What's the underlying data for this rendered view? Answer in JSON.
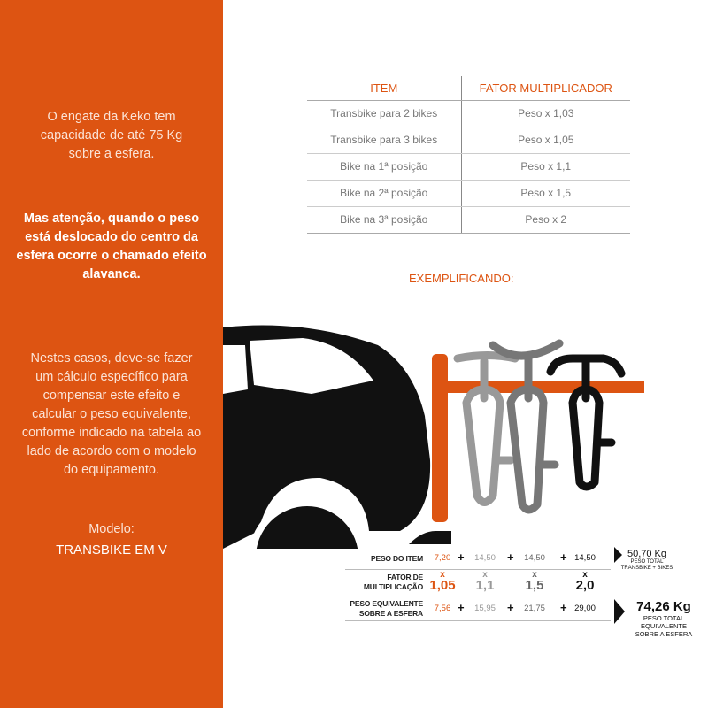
{
  "colors": {
    "accent": "#DD5412",
    "ink": "#111111"
  },
  "left": {
    "p1": [
      "O engate da Keko tem",
      "capacidade de até 75 Kg",
      "sobre a esfera."
    ],
    "p2": [
      "Mas atenção, quando o peso",
      "está deslocado do centro da",
      "esfera ocorre o chamado efeito",
      "alavanca."
    ],
    "p3": [
      "Nestes casos, deve-se fazer",
      "um cálculo específico para",
      "compensar este efeito e",
      "calcular o peso equivalente,",
      "conforme indicado na tabela ao",
      "lado de acordo com o modelo",
      "do equipamento."
    ],
    "model_label": "Modelo:",
    "model_value": "TRANSBIKE EM V"
  },
  "ref_table": {
    "headers": [
      "ITEM",
      "FATOR MULTIPLICADOR"
    ],
    "rows": [
      [
        "Transbike para 2 bikes",
        "Peso x 1,03"
      ],
      [
        "Transbike para 3 bikes",
        "Peso x 1,05"
      ],
      [
        "Bike na 1ª posição",
        "Peso x 1,1"
      ],
      [
        "Bike na 2ª posição",
        "Peso x 1,5"
      ],
      [
        "Bike na 3ª posição",
        "Peso x 2"
      ]
    ]
  },
  "example_title": "EXEMPLIFICANDO:",
  "calc": {
    "row1_label": "PESO DO ITEM",
    "row1_values": [
      "7,20",
      "14,50",
      "14,50",
      "14,50"
    ],
    "row2_label": [
      "FATOR DE",
      "MULTIPLICAÇÃO"
    ],
    "times": "x",
    "row2_values": [
      "1,05",
      "1,1",
      "1,5",
      "2,0"
    ],
    "row3_label": [
      "PESO EQUIVALENTE",
      "SOBRE A ESFERA"
    ],
    "row3_values": [
      "7,56",
      "15,95",
      "21,75",
      "29,00"
    ],
    "plus": "+",
    "total1": "50,70 Kg",
    "total1_caption": [
      "PESO TOTAL",
      "TRANSBIKE + BIKES"
    ],
    "total2": "74,26 Kg",
    "total2_caption": [
      "PESO TOTAL",
      "EQUIVALENTE",
      "SOBRE A ESFERA"
    ]
  }
}
